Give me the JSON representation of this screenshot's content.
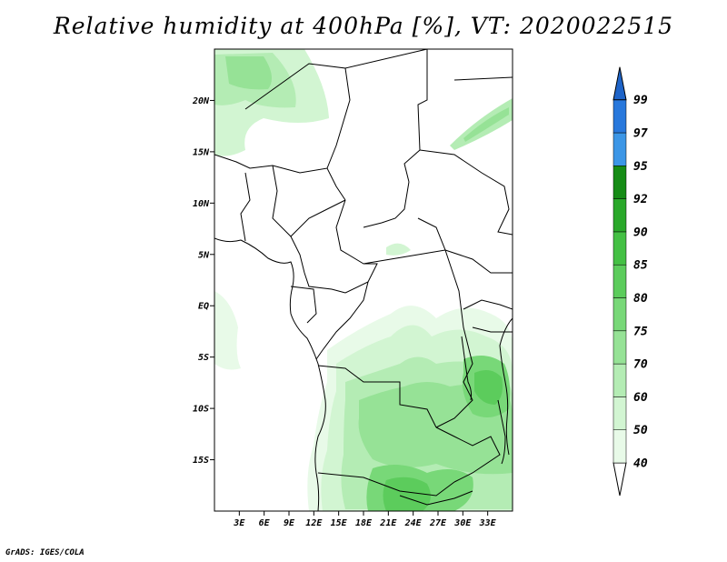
{
  "title": "Relative humidity at 400hPa [%], VT: 2020022515",
  "credit": "GrADS: IGES/COLA",
  "map": {
    "lon_range": [
      0,
      36
    ],
    "lat_range": [
      -20,
      25
    ],
    "lat_ticks": [
      {
        "value": 20,
        "label": "20N"
      },
      {
        "value": 15,
        "label": "15N"
      },
      {
        "value": 10,
        "label": "10N"
      },
      {
        "value": 5,
        "label": "5N"
      },
      {
        "value": 0,
        "label": "EQ"
      },
      {
        "value": -5,
        "label": "5S"
      },
      {
        "value": -10,
        "label": "10S"
      },
      {
        "value": -15,
        "label": "15S"
      }
    ],
    "lon_ticks": [
      {
        "value": 3,
        "label": "3E"
      },
      {
        "value": 6,
        "label": "6E"
      },
      {
        "value": 9,
        "label": "9E"
      },
      {
        "value": 12,
        "label": "12E"
      },
      {
        "value": 15,
        "label": "15E"
      },
      {
        "value": 18,
        "label": "18E"
      },
      {
        "value": 21,
        "label": "21E"
      },
      {
        "value": 24,
        "label": "24E"
      },
      {
        "value": 27,
        "label": "27E"
      },
      {
        "value": 30,
        "label": "30E"
      },
      {
        "value": 33,
        "label": "33E"
      }
    ]
  },
  "colorbar": {
    "levels": [
      {
        "label": "40",
        "color": "#e8fae8"
      },
      {
        "label": "50",
        "color": "#d2f5d2"
      },
      {
        "label": "60",
        "color": "#b4ecb4"
      },
      {
        "label": "70",
        "color": "#96e296"
      },
      {
        "label": "75",
        "color": "#78d878"
      },
      {
        "label": "80",
        "color": "#5ccc5c"
      },
      {
        "label": "85",
        "color": "#44c044"
      },
      {
        "label": "90",
        "color": "#2aa82a"
      },
      {
        "label": "92",
        "color": "#168c16"
      },
      {
        "label": "95",
        "color": "#3c96e6"
      },
      {
        "label": "97",
        "color": "#2878dc"
      },
      {
        "label": "99",
        "color": "#1e64c8"
      }
    ],
    "below_color": "#ffffff"
  }
}
